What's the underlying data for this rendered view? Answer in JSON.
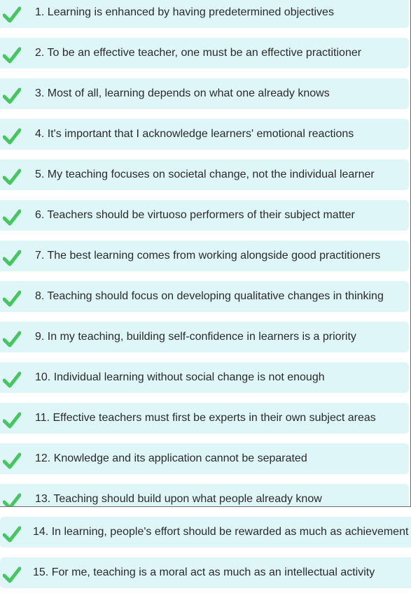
{
  "colors": {
    "row_background": "#dff6f8",
    "check_color": "#46c660",
    "text_color": "#2a2a2a"
  },
  "statements": [
    {
      "label": "1. Learning is enhanced by having predetermined objectives",
      "checked": true
    },
    {
      "label": "2. To be an effective teacher, one must be an effective practitioner",
      "checked": true
    },
    {
      "label": "3. Most of all, learning depends on what one already knows",
      "checked": true
    },
    {
      "label": "4. It's important that I acknowledge learners' emotional reactions",
      "checked": true
    },
    {
      "label": "5. My teaching focuses on societal change, not the individual learner",
      "checked": true
    },
    {
      "label": "6. Teachers should be virtuoso performers of their subject matter",
      "checked": true
    },
    {
      "label": "7. The best learning comes from working alongside good practitioners",
      "checked": true
    },
    {
      "label": "8. Teaching should focus on developing qualitative changes in thinking",
      "checked": true
    },
    {
      "label": "9. In my teaching, building self-confidence in learners is a priority",
      "checked": true
    },
    {
      "label": "10. Individual learning without social change is not enough",
      "checked": true
    },
    {
      "label": "11. Effective teachers must first be experts in their own subject areas",
      "checked": true
    },
    {
      "label": "12. Knowledge and its application cannot be separated",
      "checked": true
    },
    {
      "label": "13. Teaching should build upon what people already know",
      "checked": true
    },
    {
      "label": "14. In learning, people's effort should be rewarded as much as achievement",
      "checked": true
    },
    {
      "label": "15. For me, teaching is a moral act as much as an intellectual activity",
      "checked": true
    }
  ]
}
